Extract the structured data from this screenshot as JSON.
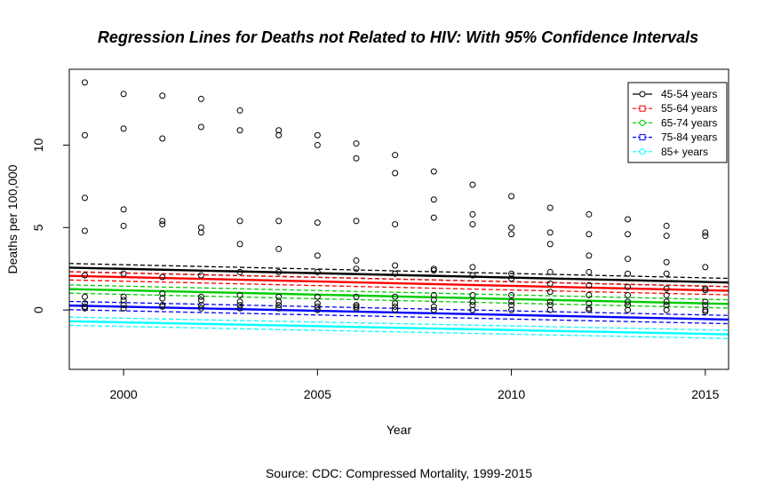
{
  "chart_data": {
    "type": "scatter",
    "title": "Regression Lines for Deaths not Related to HIV: With 95% Confidence Intervals",
    "xlabel": "Year",
    "ylabel": "Deaths per 100,000",
    "caption": "Source: CDC: Compressed Mortality, 1999-2015",
    "xlim": [
      1998.6,
      2015.6
    ],
    "ylim": [
      -3.6,
      14.6
    ],
    "x_ticks": [
      2000,
      2005,
      2010,
      2015
    ],
    "y_ticks": [
      0,
      5,
      10
    ],
    "x_tick_labels": [
      "2000",
      "2005",
      "2010",
      "2015"
    ],
    "y_tick_labels": [
      "0",
      "5",
      "10"
    ],
    "grid": false,
    "legend_position": "top-right",
    "years": [
      1999,
      2000,
      2001,
      2002,
      2003,
      2004,
      2005,
      2006,
      2007,
      2008,
      2009,
      2010,
      2011,
      2012,
      2013,
      2014,
      2015
    ],
    "points": [
      [
        13.8,
        10.6,
        6.8,
        4.8,
        2.1,
        0.8,
        0.4,
        0.2,
        0.1
      ],
      [
        13.1,
        11.0,
        6.1,
        5.1,
        2.2,
        0.8,
        0.6,
        0.3,
        0.1
      ],
      [
        13.0,
        10.4,
        5.4,
        5.2,
        2.0,
        1.0,
        0.7,
        0.3,
        0.2
      ],
      [
        12.8,
        11.1,
        5.0,
        4.7,
        2.1,
        0.8,
        0.6,
        0.3,
        0.1
      ],
      [
        12.1,
        10.9,
        5.4,
        4.0,
        2.3,
        0.9,
        0.5,
        0.3,
        0.1
      ],
      [
        10.9,
        10.6,
        5.4,
        3.7,
        2.3,
        0.8,
        0.5,
        0.3,
        0.1
      ],
      [
        10.6,
        10.0,
        5.3,
        3.3,
        2.3,
        0.8,
        0.4,
        0.2,
        0.0
      ],
      [
        10.1,
        9.2,
        5.4,
        3.0,
        2.5,
        0.8,
        0.3,
        0.2,
        0.1
      ],
      [
        9.4,
        8.3,
        5.2,
        2.7,
        2.2,
        0.8,
        0.4,
        0.2,
        0.0
      ],
      [
        8.4,
        6.7,
        5.6,
        2.5,
        2.4,
        0.9,
        0.6,
        0.2,
        0.0
      ],
      [
        7.6,
        5.8,
        5.2,
        2.6,
        2.1,
        0.9,
        0.5,
        0.3,
        0.0
      ],
      [
        6.9,
        5.0,
        4.6,
        2.2,
        1.9,
        0.9,
        0.5,
        0.3,
        0.0
      ],
      [
        6.2,
        4.7,
        4.0,
        2.3,
        1.6,
        1.1,
        0.5,
        0.3,
        0.0
      ],
      [
        5.8,
        4.6,
        3.3,
        2.3,
        1.5,
        0.9,
        0.4,
        0.1,
        0.0
      ],
      [
        5.5,
        4.6,
        3.1,
        2.2,
        1.4,
        0.9,
        0.5,
        0.3,
        0.0
      ],
      [
        5.1,
        4.5,
        2.9,
        2.2,
        1.3,
        0.9,
        0.5,
        0.3,
        0.0
      ],
      [
        4.7,
        4.5,
        2.6,
        1.3,
        1.2,
        0.5,
        0.3,
        0.0,
        -0.1
      ]
    ],
    "series": [
      {
        "name": "45-54 years",
        "color": "#000000",
        "fit": [
          2.55,
          1.7
        ],
        "ci": 0.25,
        "marker": "circle"
      },
      {
        "name": "55-64 years",
        "color": "#ff0000",
        "fit": [
          2.05,
          1.2
        ],
        "ci": 0.25,
        "marker": "square"
      },
      {
        "name": "65-74 years",
        "color": "#00cd00",
        "fit": [
          1.25,
          0.4
        ],
        "ci": 0.25,
        "marker": "circle"
      },
      {
        "name": "75-84 years",
        "color": "#0000ff",
        "fit": [
          0.25,
          -0.55
        ],
        "ci": 0.25,
        "marker": "square"
      },
      {
        "name": "85+ years",
        "color": "#00ffff",
        "fit": [
          -0.7,
          -1.45
        ],
        "ci": 0.25,
        "marker": "circle"
      }
    ]
  }
}
